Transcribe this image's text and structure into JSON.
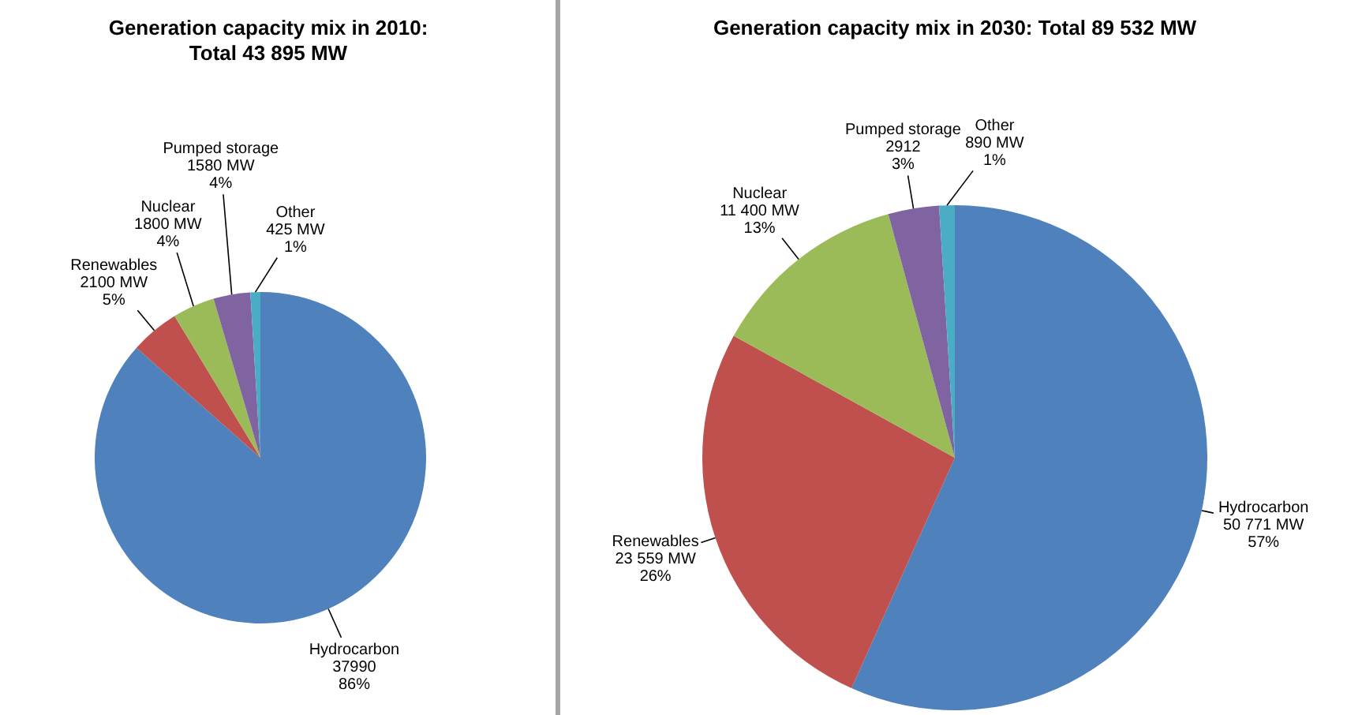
{
  "chart_data": [
    {
      "type": "pie",
      "title": "Generation capacity mix in 2010:\nTotal 43 895 MW",
      "categories": [
        "Hydrocarbon",
        "Renewables",
        "Nuclear",
        "Pumped storage",
        "Other"
      ],
      "values": [
        37990,
        2100,
        1800,
        1580,
        425
      ],
      "colors": [
        "#4f81bd",
        "#c0504d",
        "#9bbb59",
        "#8064a2",
        "#4bacc6"
      ],
      "value_labels": [
        "37990\n86%",
        "2100 MW\n5%",
        "1800 MW\n4%",
        "1580 MW\n4%",
        "425 MW\n1%"
      ]
    },
    {
      "type": "pie",
      "title": "Generation capacity mix in 2030: Total 89 532 MW",
      "categories": [
        "Hydrocarbon",
        "Renewables",
        "Nuclear",
        "Pumped storage",
        "Other"
      ],
      "values": [
        50771,
        23559,
        11400,
        2912,
        890
      ],
      "colors": [
        "#4f81bd",
        "#c0504d",
        "#9bbb59",
        "#8064a2",
        "#4bacc6"
      ],
      "value_labels": [
        "50 771 MW\n57%",
        "23 559 MW\n26%",
        "11 400 MW\n13%",
        "2912\n3%",
        "890 MW\n1%"
      ]
    }
  ]
}
